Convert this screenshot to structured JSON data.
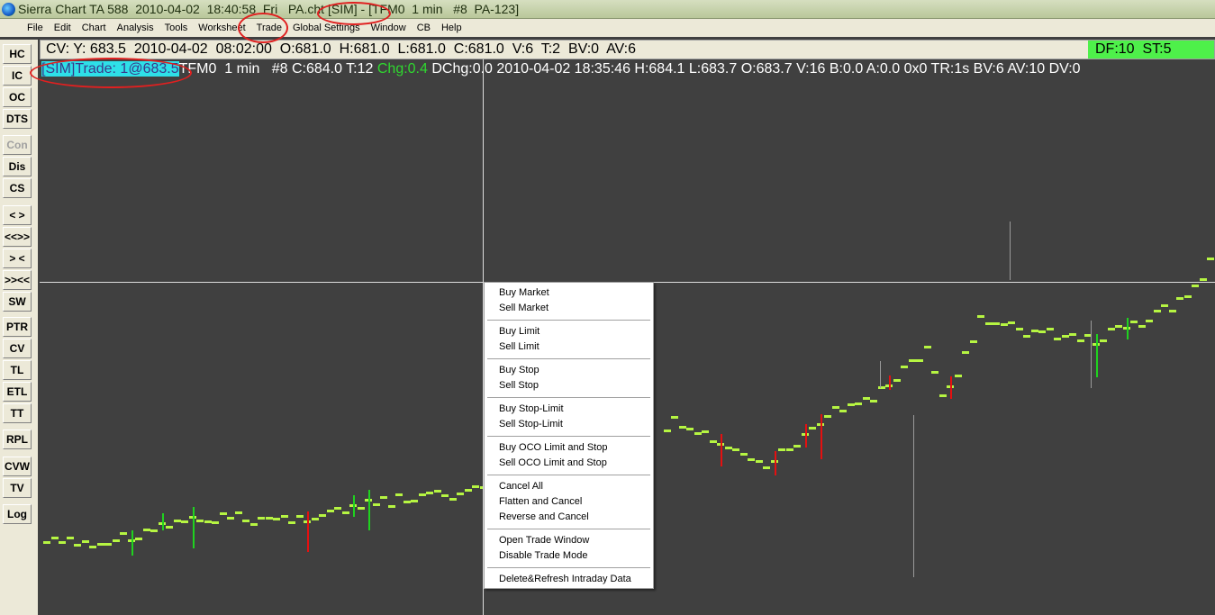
{
  "window": {
    "title": "Sierra Chart TA 588  2010-04-02  18:40:58  Fri   PA.cht [SIM] - [TFM0  1 min   #8  PA-123]"
  },
  "menu": [
    "File",
    "Edit",
    "Chart",
    "Analysis",
    "Tools",
    "Worksheet",
    "Trade",
    "Global Settings",
    "Window",
    "CB",
    "Help"
  ],
  "toolbar": [
    "HC",
    "IC",
    "OC",
    "DTS",
    "Con",
    "Dis",
    "CS",
    "< >",
    "<<>>",
    "> <",
    ">><<",
    "SW",
    "PTR",
    "CV",
    "TL",
    "ETL",
    "TT",
    "RPL",
    "CVW",
    "TV",
    "Log"
  ],
  "infobar": {
    "text": "CV: Y: 683.5  2010-04-02  08:02:00  O:681.0  H:681.0  L:681.0  C:681.0  V:6  T:2  BV:0  AV:6",
    "status": "DF:10  ST:5",
    "status_color": "#4ef04a"
  },
  "chart_header": {
    "trade": "[SIM]Trade: 1@683.5",
    "symbol": "TFM0  1 min   #8 C:684.0 T:12 ",
    "chg": "Chg:0.4",
    "rest": " DChg:0.0 2010-04-02 18:35:46 H:684.1 L:683.7 O:683.7 V:16 B:0.0 A:0.0 0x0 TR:1s BV:6 AV:10 DV:0"
  },
  "context_menu": [
    [
      "Buy Market",
      "Sell Market"
    ],
    [
      "Buy Limit",
      "Sell Limit"
    ],
    [
      "Buy Stop",
      "Sell Stop"
    ],
    [
      "Buy Stop-Limit",
      "Sell Stop-Limit"
    ],
    [
      "Buy OCO Limit and Stop",
      "Sell OCO Limit and Stop"
    ],
    [
      "Cancel All",
      "Flatten and Cancel",
      "Reverse and Cancel"
    ],
    [
      "Open Trade Window",
      "Disable Trade Mode"
    ],
    [
      "Delete&Refresh Intraday Data"
    ]
  ]
}
